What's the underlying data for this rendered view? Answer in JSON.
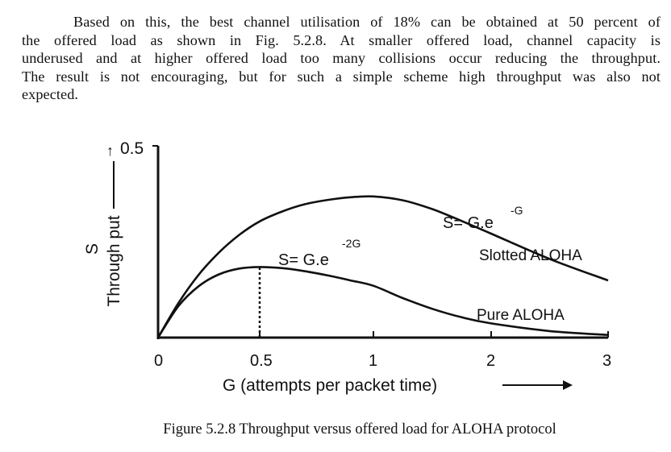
{
  "paragraph": {
    "lines": [
      "Based on this, the best channel utilisation of 18% can be obtained at 50 percent of",
      "the offered load as shown in Fig. 5.2.8. At smaller offered load, channel capacity is",
      "underused and at higher offered load too many collisions occur reducing the throughput.",
      "The result is not encouraging, but for such a simple scheme high throughput was also not",
      "expected."
    ]
  },
  "caption": "Figure 5.2.8 Throughput versus offered load for ALOHA protocol",
  "chart_data": {
    "type": "line",
    "title": "",
    "xlabel": "G (attempts per packet time)",
    "ylabel_symbol": "S",
    "ylabel": "Through put",
    "x_ticks": [
      "0",
      "0.5",
      "1",
      "2",
      "3"
    ],
    "y_ticks": [
      "0.5"
    ],
    "xlim": [
      0,
      3
    ],
    "ylim": [
      0,
      0.5
    ],
    "grid": false,
    "x_scale_note": "0 to 1 compressed, 1 to 3 compressed equally as drawn",
    "series": [
      {
        "name": "Pure ALOHA",
        "formula": "S= G.e",
        "exponent": "-2G",
        "x": [
          0,
          0.1,
          0.2,
          0.3,
          0.4,
          0.5,
          0.6,
          0.7,
          0.8,
          0.9,
          1.0,
          1.25,
          1.5,
          1.75,
          2.0,
          2.5,
          3.0
        ],
        "values": [
          0,
          0.082,
          0.134,
          0.165,
          0.18,
          0.184,
          0.181,
          0.173,
          0.162,
          0.149,
          0.135,
          0.103,
          0.075,
          0.053,
          0.037,
          0.017,
          0.007
        ]
      },
      {
        "name": "Slotted ALOHA",
        "formula": "S= G.e",
        "exponent": "-G",
        "x": [
          0,
          0.1,
          0.2,
          0.3,
          0.4,
          0.5,
          0.6,
          0.7,
          0.8,
          0.9,
          1.0,
          1.25,
          1.5,
          1.75,
          2.0,
          2.5,
          3.0
        ],
        "values": [
          0,
          0.09,
          0.164,
          0.222,
          0.268,
          0.303,
          0.329,
          0.348,
          0.359,
          0.366,
          0.368,
          0.358,
          0.335,
          0.304,
          0.271,
          0.205,
          0.149
        ]
      }
    ],
    "annotations": [
      {
        "text": "0.5",
        "note": "dotted line marks x = 0.5 peak of Pure ALOHA"
      }
    ]
  }
}
